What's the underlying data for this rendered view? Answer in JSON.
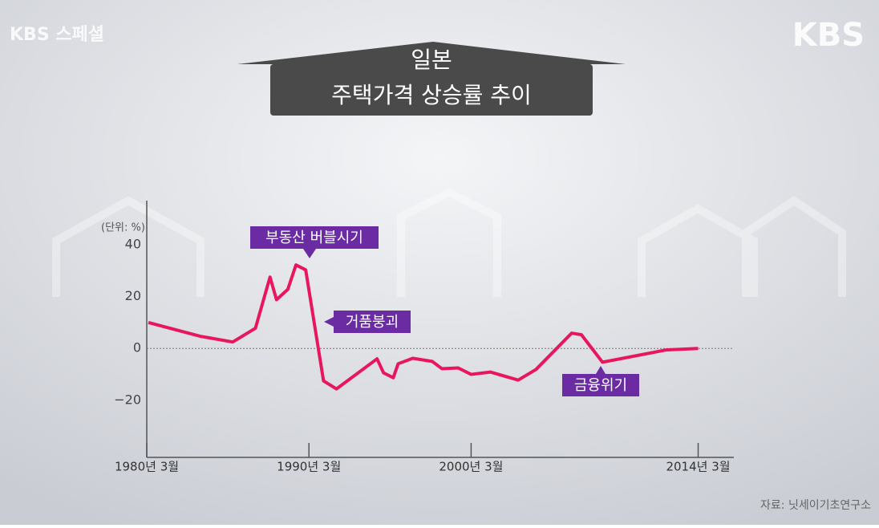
{
  "branding": {
    "program": "KBS 스페셜",
    "network": "KBS"
  },
  "source": "자료: 닛세이기초연구소",
  "chart_data": {
    "type": "line",
    "title": "일본",
    "subtitle": "주택가격 상승률 추이",
    "unit_label": "(단위: %)",
    "annotations": [
      "부동산 버블시기",
      "거품붕괴",
      "금융위기"
    ],
    "x": [
      1980.1,
      1983.3,
      1985.3,
      1986.7,
      1987.6,
      1988.0,
      1988.7,
      1989.2,
      1989.8,
      1990.9,
      1991.7,
      1994.2,
      1994.6,
      1995.2,
      1995.5,
      1996.4,
      1997.6,
      1998.2,
      1999.2,
      2000.0,
      2001.2,
      2002.9,
      2004.0,
      2006.2,
      2006.8,
      2008.1,
      2012.0,
      2014.0
    ],
    "series": [
      {
        "name": "주택가격 상승률",
        "color": "#e8175d",
        "values": [
          10,
          4.7,
          2.5,
          7.8,
          27.5,
          18.8,
          22.8,
          32.2,
          30.3,
          -12.5,
          -15.6,
          -4,
          -9.4,
          -11.3,
          -5.9,
          -3.8,
          -5,
          -7.8,
          -7.5,
          -10,
          -9.1,
          -12.2,
          -8.1,
          5.9,
          5.3,
          -5.3,
          -0.6,
          0
        ]
      }
    ],
    "xlim": [
      1980,
      2016.2
    ],
    "xticks": [
      {
        "value": 1980,
        "label": "1980년 3월"
      },
      {
        "value": 1990,
        "label": "1990년 3월"
      },
      {
        "value": 2000,
        "label": "2000년 3월"
      },
      {
        "value": 2014,
        "label": "2014년 3월"
      }
    ],
    "ylim": [
      -42,
      57
    ],
    "yticks": [
      {
        "value": -20,
        "label": "−20"
      },
      0,
      20,
      40
    ],
    "zero_line": true,
    "annotation_color": "#6b2ba3"
  }
}
